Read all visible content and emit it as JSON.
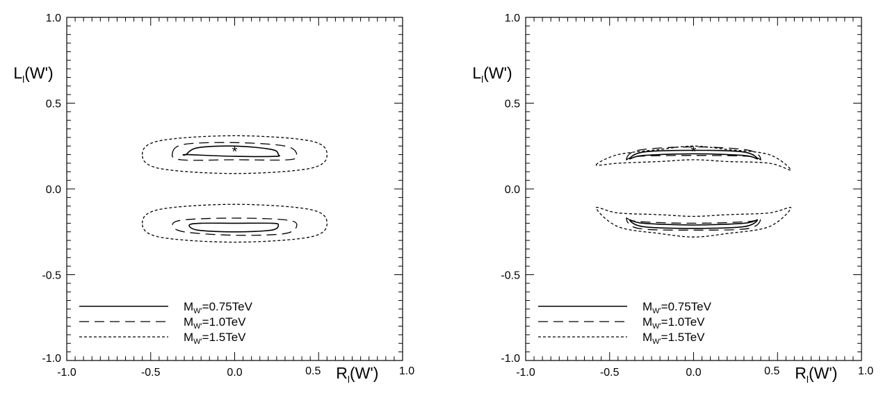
{
  "chart_data": [
    {
      "type": "line",
      "xlabel_main": "R",
      "xlabel_sub": "l",
      "xlabel_arg": "(W')",
      "ylabel_main": "L",
      "ylabel_sub": "l",
      "ylabel_arg": "(W')",
      "xlim": [
        -1.0,
        1.0
      ],
      "ylim": [
        -1.0,
        1.0
      ],
      "xticks": [
        "-1.0",
        "-0.5",
        "0.0",
        "0.5",
        "1.0"
      ],
      "yticks": [
        "-1.0",
        "-0.5",
        "0.0",
        "0.5",
        "1.0"
      ],
      "marker": {
        "x": 0.0,
        "y": 0.23,
        "label": "*"
      },
      "legend": {
        "placement": "bottom-left",
        "entries": [
          {
            "prefix": "M",
            "sub": "W'",
            "value": "=0.75TeV",
            "dash": "solid"
          },
          {
            "prefix": "M",
            "sub": "W'",
            "value": "=1.0TeV",
            "dash": "dashed"
          },
          {
            "prefix": "M",
            "sub": "W'",
            "value": "=1.5TeV",
            "dash": "dotted"
          }
        ]
      },
      "series": [
        {
          "name": "M_W'=0.75TeV",
          "dash": "solid",
          "contours": [
            {
              "x": [
                -0.29,
                -0.22,
                0.0,
                0.22,
                0.26,
                0.24,
                0.0,
                -0.28,
                -0.29
              ],
              "y": [
                0.2,
                0.24,
                0.25,
                0.23,
                0.2,
                0.19,
                0.19,
                0.2,
                0.2
              ]
            },
            {
              "x": [
                -0.27,
                -0.2,
                0.0,
                0.22,
                0.26,
                0.22,
                0.0,
                -0.22,
                -0.27
              ],
              "y": [
                -0.21,
                -0.2,
                -0.2,
                -0.2,
                -0.21,
                -0.24,
                -0.25,
                -0.24,
                -0.21
              ]
            }
          ]
        },
        {
          "name": "M_W'=1.0TeV",
          "dash": "dashed",
          "contours": [
            {
              "x": [
                -0.37,
                -0.3,
                0.0,
                0.3,
                0.37,
                0.32,
                0.0,
                -0.32,
                -0.37
              ],
              "y": [
                0.21,
                0.26,
                0.27,
                0.25,
                0.2,
                0.17,
                0.17,
                0.17,
                0.21
              ]
            },
            {
              "x": [
                -0.37,
                -0.3,
                0.0,
                0.3,
                0.37,
                0.3,
                0.0,
                -0.3,
                -0.37
              ],
              "y": [
                -0.21,
                -0.18,
                -0.17,
                -0.18,
                -0.21,
                -0.26,
                -0.27,
                -0.25,
                -0.21
              ]
            }
          ]
        },
        {
          "name": "M_W'=1.5TeV",
          "dash": "dotted",
          "contours": [
            {
              "x": [
                -0.55,
                -0.45,
                0.0,
                0.45,
                0.55,
                0.45,
                0.0,
                -0.45,
                -0.55
              ],
              "y": [
                0.2,
                0.28,
                0.31,
                0.28,
                0.2,
                0.12,
                0.09,
                0.12,
                0.2
              ]
            },
            {
              "x": [
                -0.55,
                -0.45,
                0.0,
                0.45,
                0.55,
                0.45,
                0.0,
                -0.45,
                -0.55
              ],
              "y": [
                -0.2,
                -0.12,
                -0.09,
                -0.12,
                -0.2,
                -0.28,
                -0.31,
                -0.28,
                -0.2
              ]
            }
          ]
        }
      ]
    },
    {
      "type": "line",
      "xlabel_main": "R",
      "xlabel_sub": "l",
      "xlabel_arg": "(W')",
      "ylabel_main": "L",
      "ylabel_sub": "l",
      "ylabel_arg": "(W')",
      "xlim": [
        -1.0,
        1.0
      ],
      "ylim": [
        -1.0,
        1.0
      ],
      "xticks": [
        "-1.0",
        "-0.5",
        "0.0",
        "0.5",
        "1.0"
      ],
      "yticks": [
        "-1.0",
        "-0.5",
        "0.0",
        "0.5",
        "1.0"
      ],
      "marker": {
        "x": 0.0,
        "y": 0.23,
        "label": "*"
      },
      "legend": {
        "placement": "bottom-left",
        "entries": [
          {
            "prefix": "M",
            "sub": "W'",
            "value": "=0.75TeV",
            "dash": "solid"
          },
          {
            "prefix": "M",
            "sub": "W'",
            "value": "=1.0TeV",
            "dash": "dashed"
          },
          {
            "prefix": "M",
            "sub": "W'",
            "value": "=1.5TeV",
            "dash": "dotted"
          }
        ]
      },
      "series": [
        {
          "name": "M_W'=0.75TeV",
          "dash": "solid",
          "contours": [
            {
              "x": [
                -0.38,
                -0.3,
                0.0,
                0.3,
                0.38,
                0.3,
                0.0,
                -0.3,
                -0.38
              ],
              "y": [
                0.175,
                0.215,
                0.225,
                0.215,
                0.175,
                0.195,
                0.205,
                0.195,
                0.175
              ]
            },
            {
              "x": [
                -0.38,
                -0.3,
                0.0,
                0.3,
                0.38,
                0.3,
                0.0,
                -0.3,
                -0.38
              ],
              "y": [
                -0.18,
                -0.2,
                -0.21,
                -0.2,
                -0.18,
                -0.22,
                -0.23,
                -0.22,
                -0.18
              ]
            }
          ]
        },
        {
          "name": "M_W'=1.0TeV",
          "dash": "dashed",
          "contours": [
            {
              "x": [
                -0.4,
                -0.33,
                0.0,
                0.33,
                0.4,
                0.33,
                0.0,
                -0.33,
                -0.4
              ],
              "y": [
                0.17,
                0.225,
                0.245,
                0.225,
                0.17,
                0.19,
                0.195,
                0.19,
                0.17
              ]
            },
            {
              "x": [
                -0.4,
                -0.33,
                0.0,
                0.33,
                0.4,
                0.33,
                0.0,
                -0.33,
                -0.4
              ],
              "y": [
                -0.17,
                -0.19,
                -0.2,
                -0.19,
                -0.17,
                -0.23,
                -0.24,
                -0.23,
                -0.17
              ]
            }
          ]
        },
        {
          "name": "M_W'=1.5TeV",
          "dash": "dotted",
          "contours": [
            {
              "x": [
                -0.58,
                -0.45,
                -0.2,
                0.0,
                0.2,
                0.45,
                0.58,
                0.45,
                0.2,
                0.0,
                -0.2,
                -0.45,
                -0.58
              ],
              "y": [
                0.14,
                0.2,
                0.23,
                0.25,
                0.23,
                0.2,
                0.11,
                0.15,
                0.16,
                0.17,
                0.16,
                0.15,
                0.14
              ]
            },
            {
              "x": [
                -0.58,
                -0.45,
                -0.2,
                0.0,
                0.2,
                0.45,
                0.58,
                0.45,
                0.2,
                0.0,
                -0.2,
                -0.45,
                -0.58
              ],
              "y": [
                -0.11,
                -0.14,
                -0.15,
                -0.16,
                -0.15,
                -0.14,
                -0.11,
                -0.22,
                -0.26,
                -0.28,
                -0.26,
                -0.22,
                -0.11
              ]
            }
          ]
        }
      ]
    }
  ]
}
